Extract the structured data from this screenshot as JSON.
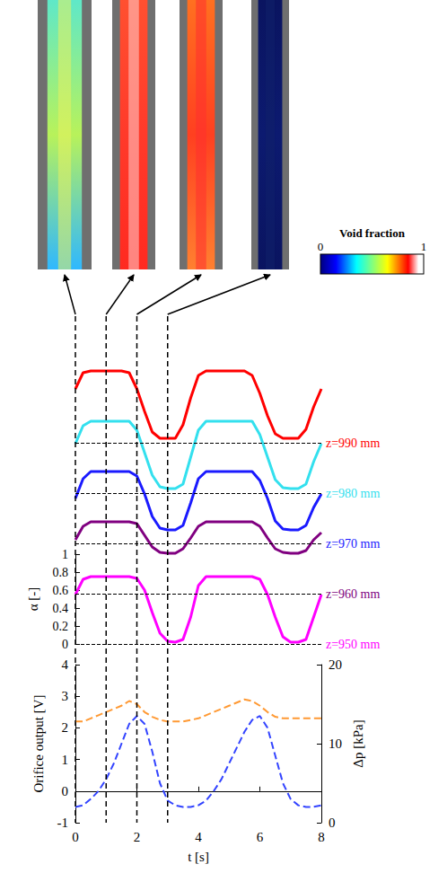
{
  "image_times": [
    0,
    1,
    2,
    3
  ],
  "colorbar": {
    "title": "Void fraction",
    "range": [
      0,
      1
    ],
    "ticks": [
      0,
      1
    ]
  },
  "chart_data": [
    {
      "type": "line",
      "ylabel": "α [-]",
      "x": [
        0,
        0.25,
        0.5,
        0.75,
        1,
        1.25,
        1.5,
        1.75,
        2,
        2.25,
        2.5,
        2.75,
        3,
        3.25,
        3.5,
        3.75,
        4,
        4.25,
        4.5,
        4.75,
        5,
        5.25,
        5.5,
        5.75,
        6,
        6.25,
        6.5,
        6.75,
        7,
        7.25,
        7.5,
        7.75,
        8
      ],
      "xlim": [
        0,
        8
      ],
      "ylim": [
        0,
        1
      ],
      "yticks": [
        0,
        0.2,
        0.4,
        0.6,
        0.8,
        1
      ],
      "line_style": "solid",
      "series": [
        {
          "name": "z=990 mm",
          "color": "#ff0000",
          "values": [
            0.6,
            0.78,
            0.8,
            0.8,
            0.8,
            0.8,
            0.8,
            0.78,
            0.6,
            0.35,
            0.12,
            0.05,
            0.05,
            0.05,
            0.2,
            0.5,
            0.75,
            0.8,
            0.8,
            0.8,
            0.8,
            0.8,
            0.8,
            0.75,
            0.55,
            0.3,
            0.1,
            0.05,
            0.05,
            0.05,
            0.15,
            0.4,
            0.6
          ]
        },
        {
          "name": "z=980 mm",
          "color": "#33e0ee",
          "values": [
            0.55,
            0.75,
            0.8,
            0.8,
            0.8,
            0.8,
            0.8,
            0.8,
            0.7,
            0.45,
            0.2,
            0.07,
            0.05,
            0.05,
            0.1,
            0.4,
            0.7,
            0.8,
            0.8,
            0.8,
            0.8,
            0.8,
            0.8,
            0.8,
            0.65,
            0.4,
            0.15,
            0.06,
            0.05,
            0.05,
            0.1,
            0.35,
            0.55
          ]
        },
        {
          "name": "z=970 mm",
          "color": "#1a1aff",
          "values": [
            0.5,
            0.72,
            0.8,
            0.8,
            0.8,
            0.8,
            0.8,
            0.8,
            0.75,
            0.55,
            0.3,
            0.17,
            0.15,
            0.15,
            0.2,
            0.45,
            0.72,
            0.8,
            0.8,
            0.8,
            0.8,
            0.8,
            0.8,
            0.8,
            0.7,
            0.5,
            0.25,
            0.16,
            0.15,
            0.15,
            0.2,
            0.4,
            0.55
          ]
        },
        {
          "name": "z=960 mm",
          "color": "#800080",
          "values": [
            0.6,
            0.75,
            0.8,
            0.8,
            0.8,
            0.8,
            0.8,
            0.8,
            0.78,
            0.65,
            0.52,
            0.46,
            0.45,
            0.45,
            0.5,
            0.62,
            0.75,
            0.8,
            0.8,
            0.8,
            0.8,
            0.8,
            0.8,
            0.8,
            0.75,
            0.62,
            0.5,
            0.46,
            0.45,
            0.45,
            0.48,
            0.6,
            0.68
          ]
        },
        {
          "name": "z=950 mm",
          "color": "#ff00ff",
          "values": [
            0.55,
            0.72,
            0.75,
            0.75,
            0.75,
            0.75,
            0.75,
            0.75,
            0.73,
            0.6,
            0.35,
            0.12,
            0.03,
            0.02,
            0.05,
            0.3,
            0.65,
            0.75,
            0.75,
            0.75,
            0.75,
            0.75,
            0.75,
            0.75,
            0.72,
            0.55,
            0.3,
            0.08,
            0.02,
            0.02,
            0.05,
            0.3,
            0.55
          ]
        }
      ]
    },
    {
      "type": "line",
      "xlabel": "t [s]",
      "ylabel": "Orifice output [V]",
      "y2label": "Δp [kPa]",
      "x": [
        0,
        0.25,
        0.5,
        0.75,
        1,
        1.25,
        1.5,
        1.75,
        2,
        2.25,
        2.5,
        2.75,
        3,
        3.25,
        3.5,
        3.75,
        4,
        4.25,
        4.5,
        4.75,
        5,
        5.25,
        5.5,
        5.75,
        6,
        6.25,
        6.5,
        6.75,
        7,
        7.25,
        7.5,
        7.75,
        8
      ],
      "xlim": [
        0,
        8
      ],
      "xticks": [
        0,
        2,
        4,
        6,
        8
      ],
      "ylim": [
        -1,
        4
      ],
      "yticks": [
        -1,
        0,
        1,
        2,
        3,
        4
      ],
      "y2lim": [
        0,
        20
      ],
      "y2ticks": [
        0,
        10,
        20
      ],
      "series": [
        {
          "color": "#ff9933",
          "line_style": "dashed",
          "values": [
            2.2,
            2.2,
            2.3,
            2.4,
            2.5,
            2.6,
            2.7,
            2.85,
            2.75,
            2.5,
            2.35,
            2.25,
            2.2,
            2.2,
            2.2,
            2.25,
            2.3,
            2.4,
            2.5,
            2.6,
            2.7,
            2.8,
            2.9,
            2.85,
            2.7,
            2.5,
            2.35,
            2.3,
            2.3,
            2.3,
            2.3,
            2.3,
            2.3
          ]
        },
        {
          "color": "#3344ff",
          "line_style": "dashed",
          "axis": "y2",
          "values": [
            2,
            2.2,
            3,
            4,
            5.5,
            7.5,
            10,
            12.5,
            13.5,
            12.5,
            9,
            5,
            2.8,
            2.2,
            2,
            2,
            2.2,
            2.8,
            4,
            5.5,
            7.5,
            9.5,
            11.5,
            13,
            13.5,
            12,
            8.5,
            5,
            3,
            2.2,
            2,
            2,
            2.2
          ]
        }
      ]
    }
  ]
}
